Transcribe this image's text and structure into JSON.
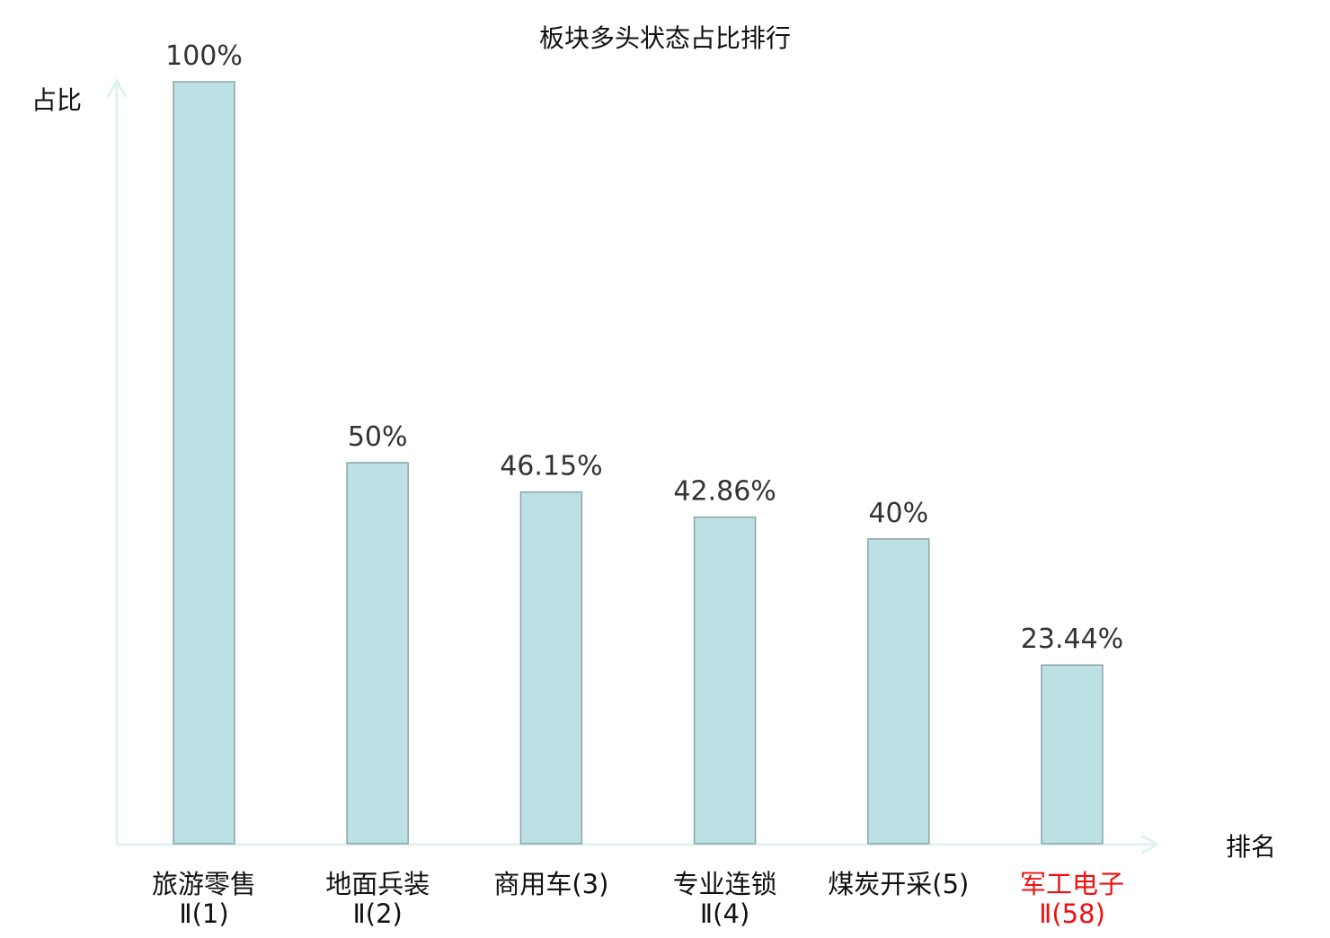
{
  "chart_data": {
    "type": "bar",
    "title": "板块多头状态占比排行",
    "ylabel": "占比",
    "xlabel": "排名",
    "categories": [
      [
        "旅游零售",
        "Ⅱ(1)"
      ],
      [
        "地面兵装",
        "Ⅱ(2)"
      ],
      [
        "商用车(3)"
      ],
      [
        "专业连锁",
        "Ⅱ(4)"
      ],
      [
        "煤炭开采(5)"
      ],
      [
        "军工电子",
        "Ⅱ(58)"
      ]
    ],
    "values": [
      100,
      50,
      46.15,
      42.86,
      40,
      23.44
    ],
    "data_labels": [
      "100%",
      "50%",
      "46.15%",
      "42.86%",
      "40%",
      "23.44%"
    ],
    "highlight_index": 5,
    "ylim": [
      0,
      100
    ],
    "grid": false,
    "colors": {
      "bar_fill": "#bce0e3",
      "bar_stroke": "#8aa6a8",
      "axis": "#dff2f0",
      "text": "#111111",
      "label": "#333333",
      "highlight": "#ee1111"
    }
  }
}
